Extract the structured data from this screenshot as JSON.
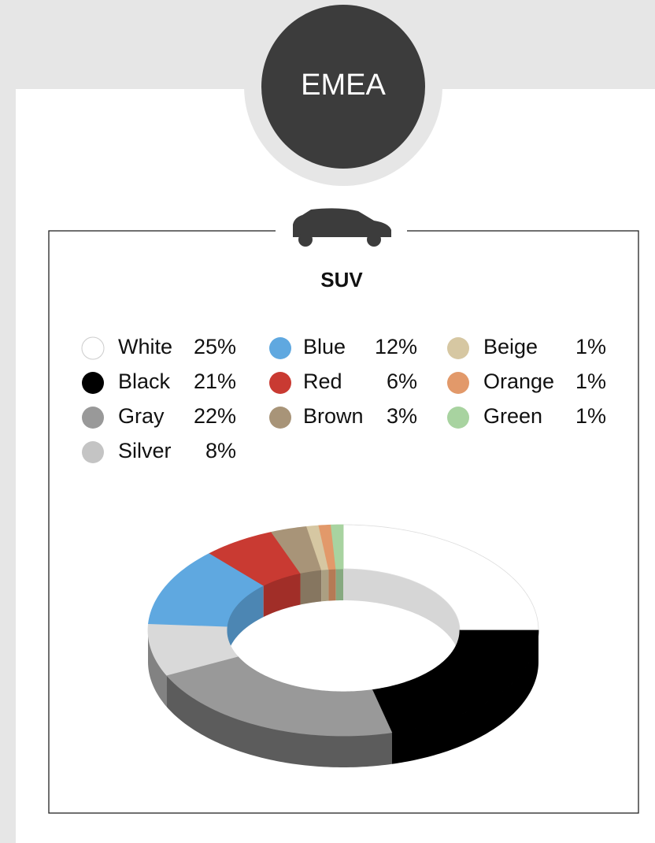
{
  "chart_data": {
    "type": "donut3d",
    "region": "EMEA",
    "title": "SUV",
    "categories": [
      "White",
      "Black",
      "Gray",
      "Silver",
      "Blue",
      "Red",
      "Brown",
      "Beige",
      "Orange",
      "Green"
    ],
    "values": [
      25,
      21,
      22,
      8,
      12,
      6,
      3,
      1,
      1,
      1
    ],
    "value_labels": [
      "25%",
      "21%",
      "22%",
      "8%",
      "12%",
      "6%",
      "3%",
      "1%",
      "1%",
      "1%"
    ],
    "colors": [
      "#ffffff",
      "#000000",
      "#999999",
      "#d9d9d9",
      "#5fa8e0",
      "#c93a32",
      "#a89478",
      "#d6c7a2",
      "#e2996a",
      "#a8d3a0"
    ],
    "legend_colors": [
      "#ffffff",
      "#000000",
      "#999999",
      "#c4c4c4",
      "#5fa8e0",
      "#c93a32",
      "#a89478",
      "#d6c7a2",
      "#e2996a",
      "#a8d3a0"
    ]
  }
}
